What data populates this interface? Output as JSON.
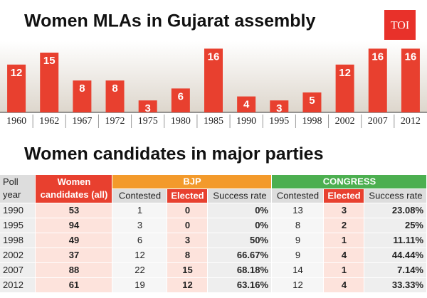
{
  "chart_data": {
    "type": "bar",
    "title": "Women MLAs in Gujarat assembly",
    "categories": [
      "1960",
      "1962",
      "1967",
      "1972",
      "1975",
      "1980",
      "1985",
      "1990",
      "1995",
      "1998",
      "2002",
      "2007",
      "2012"
    ],
    "values": [
      12,
      15,
      8,
      8,
      3,
      6,
      16,
      4,
      3,
      5,
      12,
      16,
      16
    ],
    "color": "#e8402f"
  },
  "logo": "TOI",
  "table": {
    "title": "Women candidates in major parties",
    "header": [
      "Poll year",
      "Women candidates (all)",
      "BJP",
      "CONGRESS"
    ],
    "subheader": [
      "Contested",
      "Elected",
      "Success rate",
      "Contested",
      "Elected",
      "Success rate"
    ],
    "rows": [
      [
        "1990",
        "53",
        "1",
        "0",
        "0%",
        "13",
        "3",
        "23.08%"
      ],
      [
        "1995",
        "94",
        "3",
        "0",
        "0%",
        "8",
        "2",
        "25%"
      ],
      [
        "1998",
        "49",
        "6",
        "3",
        "50%",
        "9",
        "1",
        "11.11%"
      ],
      [
        "2002",
        "37",
        "12",
        "8",
        "66.67%",
        "9",
        "4",
        "44.44%"
      ],
      [
        "2007",
        "88",
        "22",
        "15",
        "68.18%",
        "14",
        "1",
        "7.14%"
      ],
      [
        "2012",
        "61",
        "19",
        "12",
        "63.16%",
        "12",
        "4",
        "33.33%"
      ]
    ]
  }
}
